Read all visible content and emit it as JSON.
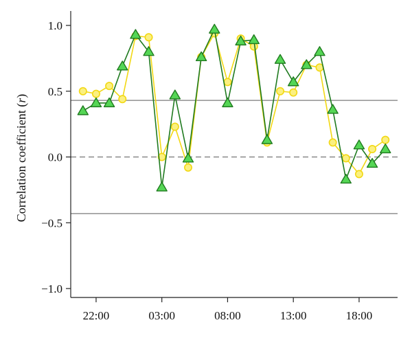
{
  "chart_data": {
    "type": "line",
    "ylabel_prefix": "Correlation coefficient (",
    "ylabel_var": "r",
    "ylabel_suffix": ")",
    "ylim": [
      -1.1,
      1.1
    ],
    "xlim": [
      0.5,
      24.5
    ],
    "y_ticks": [
      {
        "value": 1.0,
        "label": "1.0"
      },
      {
        "value": 0.5,
        "label": "0.5"
      },
      {
        "value": 0.0,
        "label": "0.0"
      },
      {
        "value": -0.5,
        "label": "−0.5"
      },
      {
        "value": -1.0,
        "label": "−1.0"
      }
    ],
    "x_ticks": [
      {
        "value": 2,
        "label": "22:00"
      },
      {
        "value": 7,
        "label": "03:00"
      },
      {
        "value": 12,
        "label": "08:00"
      },
      {
        "value": 17,
        "label": "13:00"
      },
      {
        "value": 22,
        "label": "18:00"
      }
    ],
    "reference_lines": [
      {
        "y": 0.43,
        "style": "solid"
      },
      {
        "y": -0.43,
        "style": "solid"
      },
      {
        "y": 0.0,
        "style": "dashed"
      }
    ],
    "grid": false,
    "x": [
      1,
      2,
      3,
      4,
      5,
      6,
      7,
      8,
      9,
      10,
      11,
      12,
      13,
      14,
      15,
      16,
      17,
      18,
      19,
      20,
      21,
      22,
      23,
      24
    ],
    "series": [
      {
        "marker": "circle",
        "color": "#f2d813",
        "fill": "#fbf080",
        "values": [
          0.5,
          0.48,
          0.54,
          0.44,
          0.92,
          0.91,
          0.0,
          0.23,
          -0.08,
          0.76,
          0.94,
          0.57,
          0.9,
          0.84,
          0.11,
          0.5,
          0.49,
          0.7,
          0.68,
          0.11,
          -0.01,
          -0.13,
          0.06,
          0.13
        ]
      },
      {
        "marker": "triangle",
        "color": "#1f7a1f",
        "fill": "#55d655",
        "values": [
          0.35,
          0.41,
          0.41,
          0.69,
          0.93,
          0.8,
          -0.23,
          0.47,
          -0.01,
          0.76,
          0.97,
          0.41,
          0.88,
          0.89,
          0.13,
          0.74,
          0.57,
          0.7,
          0.8,
          0.36,
          -0.17,
          0.09,
          -0.05,
          0.06
        ]
      }
    ]
  }
}
